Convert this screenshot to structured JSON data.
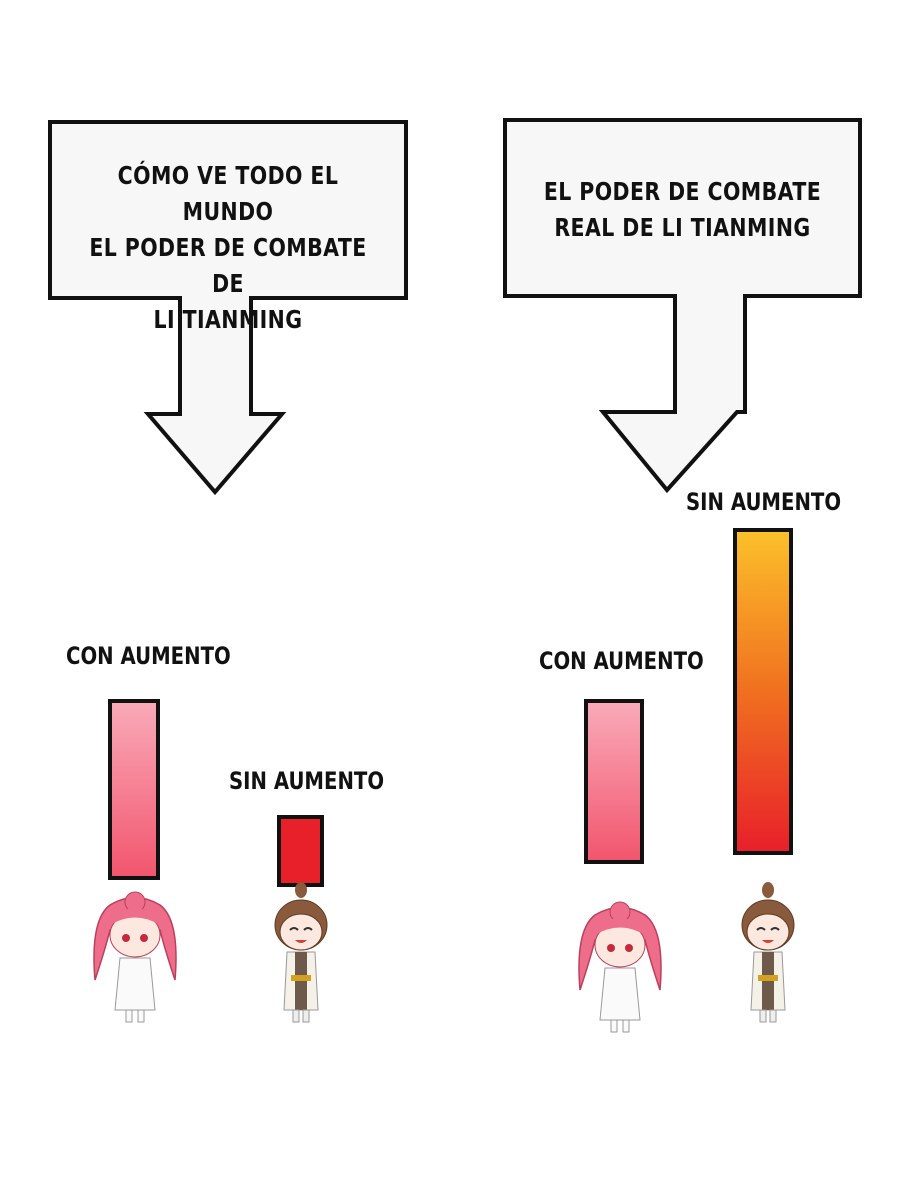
{
  "left_panel": {
    "caption_lines": [
      "CÓMO VE TODO EL MUNDO",
      "EL PODER DE COMBATE DE",
      "LI TIANMING"
    ],
    "bars": [
      {
        "label": "CON AUMENTO",
        "colors": [
          "#f9aab8",
          "#f2566e"
        ]
      },
      {
        "label": "SIN AUMENTO",
        "colors": [
          "#e8202a",
          "#e8202a"
        ]
      }
    ]
  },
  "right_panel": {
    "caption_lines": [
      "EL PODER DE COMBATE",
      "REAL DE LI TIANMING"
    ],
    "bars": [
      {
        "label": "CON AUMENTO",
        "colors": [
          "#f9aab8",
          "#f2566e"
        ]
      },
      {
        "label": "SIN AUMENTO",
        "colors": [
          "#fbc02a",
          "#e8202a"
        ]
      }
    ]
  }
}
